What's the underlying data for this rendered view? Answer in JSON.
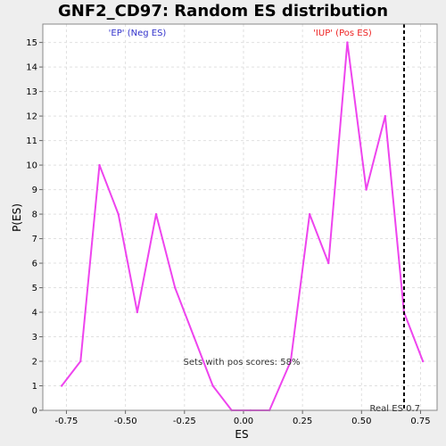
{
  "chart_data": {
    "type": "line",
    "title": "GNF2_CD97: Random ES distribution",
    "xlabel": "ES",
    "ylabel": "P(ES)",
    "xlim": [
      -0.85,
      0.82
    ],
    "ylim": [
      0,
      15.75
    ],
    "x_ticks": [
      -0.75,
      -0.5,
      -0.25,
      0.0,
      0.25,
      0.5,
      0.75
    ],
    "x_tick_labels": [
      "-0.75",
      "-0.50",
      "-0.25",
      "0.00",
      "0.25",
      "0.50",
      "0.75"
    ],
    "y_ticks": [
      0,
      1,
      2,
      3,
      4,
      5,
      6,
      7,
      8,
      9,
      10,
      11,
      12,
      13,
      14,
      15
    ],
    "y_tick_labels": [
      "0",
      "1",
      "2",
      "3",
      "4",
      "5",
      "6",
      "7",
      "8",
      "9",
      "10",
      "11",
      "12",
      "13",
      "14",
      "15"
    ],
    "grid": true,
    "series": [
      {
        "color": "#ee44ee",
        "x": [
          -0.77,
          -0.69,
          -0.61,
          -0.53,
          -0.45,
          -0.37,
          -0.29,
          -0.21,
          -0.13,
          -0.05,
          0.03,
          0.11,
          0.2,
          0.28,
          0.36,
          0.44,
          0.52,
          0.6,
          0.68,
          0.76
        ],
        "y": [
          1,
          2,
          10,
          8,
          4,
          8,
          5,
          3,
          1,
          0,
          0,
          0,
          2,
          8,
          6,
          15,
          9,
          12,
          4,
          2
        ]
      }
    ],
    "real_es": {
      "value": 0.68,
      "label": "Real ES 0.7",
      "color": "#000000"
    },
    "annotations": {
      "neg_label": "'EP' (Neg ES)",
      "neg_color": "#3333cc",
      "pos_label": "'IUP' (Pos ES)",
      "pos_color": "#ee2222",
      "pos_scores": "Sets with pos scores: 58%"
    }
  }
}
